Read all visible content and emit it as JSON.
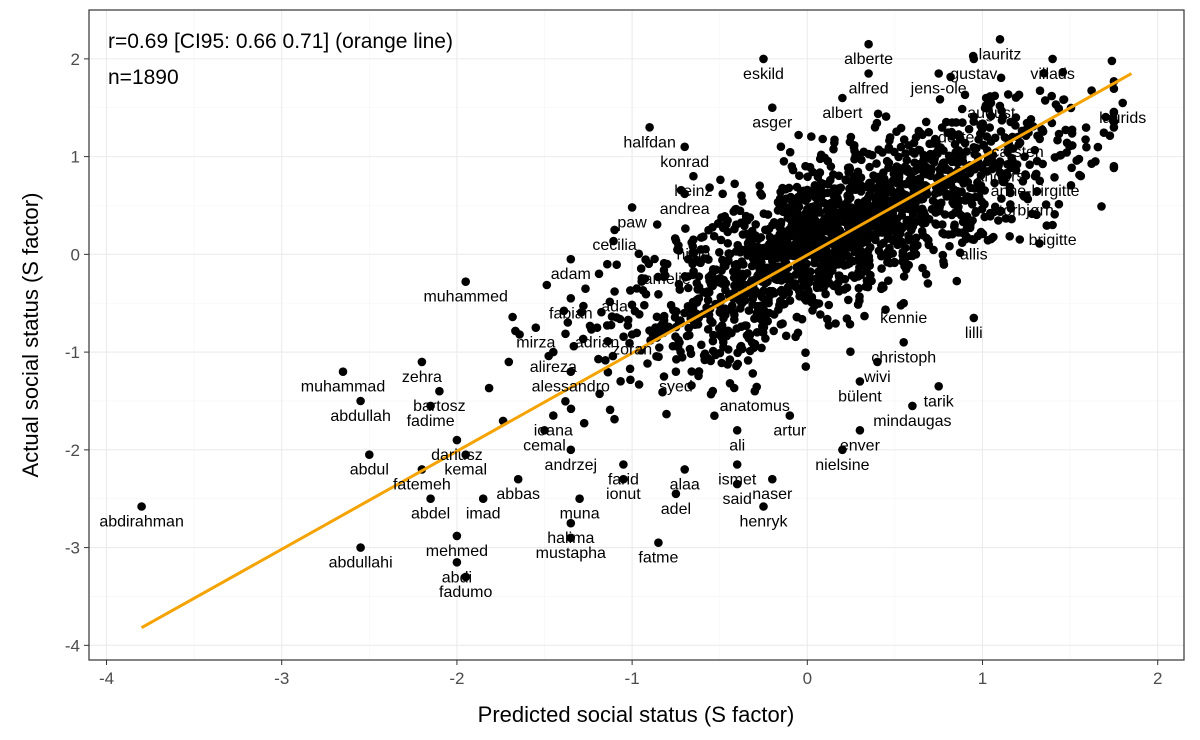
{
  "chart_data": {
    "type": "scatter",
    "xlabel": "Predicted social status (S factor)",
    "ylabel": "Actual social status (S factor)",
    "xlim": [
      -4.1,
      2.15
    ],
    "ylim": [
      -4.15,
      2.5
    ],
    "x_ticks": [
      -4,
      -3,
      -2,
      -1,
      0,
      1,
      2
    ],
    "y_ticks": [
      -4,
      -3,
      -2,
      -1,
      0,
      1,
      2
    ],
    "x_tick_labels": [
      "-4",
      "-3",
      "-2",
      "-1",
      "0",
      "1",
      "2"
    ],
    "y_tick_labels": [
      "-4",
      "-3",
      "-2",
      "-1",
      "0",
      "1",
      "2"
    ],
    "grid": true,
    "annotations": [
      "r=0.69 [CI95: 0.66 0.71] (orange line)",
      "n=1890"
    ],
    "n": 1890,
    "fit_line": {
      "color": "#F5A300",
      "x": [
        -3.8,
        1.85
      ],
      "y": [
        -3.82,
        1.85
      ]
    },
    "point_color": "#000000",
    "labeled_points": [
      {
        "name": "abdirahman",
        "x": -3.8,
        "y": -2.58
      },
      {
        "name": "muhammad",
        "x": -2.65,
        "y": -1.2
      },
      {
        "name": "abdullah",
        "x": -2.55,
        "y": -1.5
      },
      {
        "name": "abdul",
        "x": -2.5,
        "y": -2.05
      },
      {
        "name": "abdullahi",
        "x": -2.55,
        "y": -3.0
      },
      {
        "name": "zehra",
        "x": -2.2,
        "y": -1.1
      },
      {
        "name": "bartosz",
        "x": -2.1,
        "y": -1.4
      },
      {
        "name": "fadime",
        "x": -2.15,
        "y": -1.55
      },
      {
        "name": "fatemeh",
        "x": -2.2,
        "y": -2.2
      },
      {
        "name": "abdel",
        "x": -2.15,
        "y": -2.5
      },
      {
        "name": "mehmed",
        "x": -2.0,
        "y": -2.88
      },
      {
        "name": "abdi",
        "x": -2.0,
        "y": -3.15
      },
      {
        "name": "fadumo",
        "x": -1.95,
        "y": -3.3
      },
      {
        "name": "dariusz",
        "x": -2.0,
        "y": -1.9
      },
      {
        "name": "kemal",
        "x": -1.95,
        "y": -2.05
      },
      {
        "name": "imad",
        "x": -1.85,
        "y": -2.5
      },
      {
        "name": "muhammed",
        "x": -1.95,
        "y": -0.28
      },
      {
        "name": "abbas",
        "x": -1.65,
        "y": -2.3
      },
      {
        "name": "cemal",
        "x": -1.5,
        "y": -1.8
      },
      {
        "name": "ioana",
        "x": -1.45,
        "y": -1.65
      },
      {
        "name": "andrzej",
        "x": -1.35,
        "y": -2.0
      },
      {
        "name": "mirza",
        "x": -1.55,
        "y": -0.75
      },
      {
        "name": "alireza",
        "x": -1.45,
        "y": -1.0
      },
      {
        "name": "alessandro",
        "x": -1.35,
        "y": -1.2
      },
      {
        "name": "fabian",
        "x": -1.35,
        "y": -0.45
      },
      {
        "name": "adam",
        "x": -1.35,
        "y": -0.05
      },
      {
        "name": "cecilia",
        "x": -1.1,
        "y": 0.25
      },
      {
        "name": "paw",
        "x": -1.0,
        "y": 0.48
      },
      {
        "name": "ada",
        "x": -1.1,
        "y": -0.38
      },
      {
        "name": "adrian",
        "x": -1.2,
        "y": -0.75
      },
      {
        "name": "zoran",
        "x": -1.0,
        "y": -0.82
      },
      {
        "name": "muna",
        "x": -1.3,
        "y": -2.5
      },
      {
        "name": "halima",
        "x": -1.35,
        "y": -2.75
      },
      {
        "name": "mustapha",
        "x": -1.35,
        "y": -2.9
      },
      {
        "name": "farid",
        "x": -1.05,
        "y": -2.15
      },
      {
        "name": "ionut",
        "x": -1.05,
        "y": -2.3
      },
      {
        "name": "fatme",
        "x": -0.85,
        "y": -2.95
      },
      {
        "name": "adel",
        "x": -0.75,
        "y": -2.45
      },
      {
        "name": "alaa",
        "x": -0.7,
        "y": -2.2
      },
      {
        "name": "ismet",
        "x": -0.4,
        "y": -2.15
      },
      {
        "name": "said",
        "x": -0.4,
        "y": -2.35
      },
      {
        "name": "henryk",
        "x": -0.25,
        "y": -2.58
      },
      {
        "name": "naser",
        "x": -0.2,
        "y": -2.3
      },
      {
        "name": "ali",
        "x": -0.4,
        "y": -1.8
      },
      {
        "name": "artur",
        "x": -0.1,
        "y": -1.65
      },
      {
        "name": "anatomus",
        "x": -0.3,
        "y": -1.4
      },
      {
        "name": "syed",
        "x": -0.75,
        "y": -1.2
      },
      {
        "name": "halfdan",
        "x": -0.9,
        "y": 1.3
      },
      {
        "name": "konrad",
        "x": -0.7,
        "y": 1.1
      },
      {
        "name": "heinz",
        "x": -0.65,
        "y": 0.8
      },
      {
        "name": "andrea",
        "x": -0.7,
        "y": 0.62
      },
      {
        "name": "hilde",
        "x": -0.65,
        "y": 0.15
      },
      {
        "name": "amelie",
        "x": -0.8,
        "y": -0.1
      },
      {
        "name": "eskild",
        "x": -0.25,
        "y": 2.0
      },
      {
        "name": "asger",
        "x": -0.2,
        "y": 1.5
      },
      {
        "name": "alberte",
        "x": 0.35,
        "y": 2.15
      },
      {
        "name": "alfred",
        "x": 0.35,
        "y": 1.85
      },
      {
        "name": "albert",
        "x": 0.2,
        "y": 1.6
      },
      {
        "name": "jens-ole",
        "x": 0.75,
        "y": 1.85
      },
      {
        "name": "gustav",
        "x": 0.95,
        "y": 2.0
      },
      {
        "name": "lauritz",
        "x": 1.1,
        "y": 2.2
      },
      {
        "name": "villads",
        "x": 1.4,
        "y": 2.0
      },
      {
        "name": "august",
        "x": 1.05,
        "y": 1.6
      },
      {
        "name": "dorte",
        "x": 0.85,
        "y": 1.35
      },
      {
        "name": "carsten",
        "x": 1.2,
        "y": 1.2
      },
      {
        "name": "laurids",
        "x": 1.8,
        "y": 1.55
      },
      {
        "name": "anders",
        "x": 1.1,
        "y": 0.95
      },
      {
        "name": "anne-birgitte",
        "x": 1.3,
        "y": 0.8
      },
      {
        "name": "torbjørn",
        "x": 1.25,
        "y": 0.6
      },
      {
        "name": "brigitte",
        "x": 1.4,
        "y": 0.3
      },
      {
        "name": "allis",
        "x": 0.95,
        "y": 0.15
      },
      {
        "name": "lilli",
        "x": 0.95,
        "y": -0.65
      },
      {
        "name": "kennie",
        "x": 0.55,
        "y": -0.5
      },
      {
        "name": "christoph",
        "x": 0.55,
        "y": -0.9
      },
      {
        "name": "tarik",
        "x": 0.75,
        "y": -1.35
      },
      {
        "name": "mindaugas",
        "x": 0.6,
        "y": -1.55
      },
      {
        "name": "bülent",
        "x": 0.3,
        "y": -1.3
      },
      {
        "name": "wivi",
        "x": 0.4,
        "y": -1.1
      },
      {
        "name": "enver",
        "x": 0.3,
        "y": -1.8
      },
      {
        "name": "nielsine",
        "x": 0.2,
        "y": -2.0
      }
    ]
  }
}
